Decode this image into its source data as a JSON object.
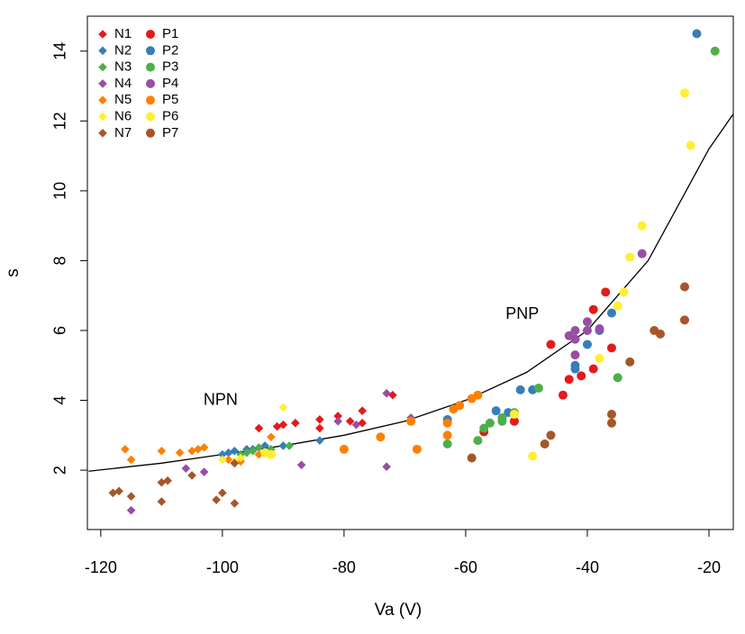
{
  "chart_data": {
    "type": "scatter",
    "xlabel": "Va (V)",
    "ylabel": "s",
    "xlim": [
      -122.2,
      -16
    ],
    "ylim": [
      0.3,
      15.0
    ],
    "xticks": [
      -120,
      -100,
      -80,
      -60,
      -40,
      -20
    ],
    "yticks": [
      2,
      4,
      6,
      8,
      10,
      12,
      14
    ],
    "legend": "upper-left",
    "annotations": [
      {
        "text": "NPN",
        "x": -100.3,
        "y": 4.0
      },
      {
        "text": "PNP",
        "x": -50.7,
        "y": 6.46
      }
    ],
    "curve": {
      "color": "#000000",
      "x": [
        -122,
        -110,
        -100,
        -90,
        -80,
        -70,
        -60,
        -50,
        -40,
        -30,
        -20,
        -16
      ],
      "values": [
        1.97,
        2.2,
        2.45,
        2.7,
        3.0,
        3.4,
        4.0,
        4.8,
        6.0,
        8.0,
        11.2,
        12.2
      ]
    },
    "series": [
      {
        "name": "N1",
        "color": "#e41a1c",
        "marker": "diamond",
        "x": [
          -94,
          -91,
          -90,
          -88,
          -84,
          -81,
          -77,
          -77,
          -72,
          -84,
          -79
        ],
        "values": [
          3.2,
          3.25,
          3.3,
          3.35,
          3.45,
          3.55,
          3.7,
          3.35,
          4.15,
          3.2,
          3.4
        ]
      },
      {
        "name": "N2",
        "color": "#377eb8",
        "marker": "diamond",
        "x": [
          -99,
          -98,
          -96,
          -95,
          -93,
          -90,
          -84,
          -100
        ],
        "values": [
          2.5,
          2.55,
          2.6,
          2.6,
          2.7,
          2.7,
          2.85,
          2.45
        ]
      },
      {
        "name": "N3",
        "color": "#4daf4a",
        "marker": "diamond",
        "x": [
          -97,
          -95,
          -94,
          -92,
          -89,
          -96
        ],
        "values": [
          2.45,
          2.55,
          2.65,
          2.6,
          2.7,
          2.5
        ]
      },
      {
        "name": "N4",
        "color": "#984ea3",
        "marker": "diamond",
        "x": [
          -115,
          -106,
          -103,
          -98,
          -87,
          -81,
          -78,
          -73,
          -73,
          -69
        ],
        "values": [
          0.85,
          2.05,
          1.95,
          2.2,
          2.15,
          3.4,
          3.3,
          4.2,
          2.1,
          3.5
        ]
      },
      {
        "name": "N5",
        "color": "#ff7f00",
        "marker": "diamond",
        "x": [
          -116,
          -115,
          -110,
          -107,
          -105,
          -104,
          -103,
          -99,
          -97,
          -94,
          -92
        ],
        "values": [
          2.6,
          2.3,
          2.55,
          2.5,
          2.55,
          2.6,
          2.65,
          2.3,
          2.25,
          2.45,
          2.95
        ]
      },
      {
        "name": "N6",
        "color": "#ffee33",
        "marker": "diamond",
        "x": [
          -100,
          -98,
          -97,
          -90
        ],
        "values": [
          2.3,
          2.25,
          2.35,
          3.8
        ]
      },
      {
        "name": "N7",
        "color": "#a65628",
        "marker": "diamond",
        "x": [
          -118,
          -117,
          -115,
          -110,
          -109,
          -110,
          -105,
          -101,
          -100,
          -98,
          -98
        ],
        "values": [
          1.35,
          1.4,
          1.25,
          1.65,
          1.7,
          1.1,
          1.85,
          1.15,
          1.35,
          1.05,
          2.2
        ]
      },
      {
        "name": "P1",
        "color": "#e41a1c",
        "marker": "circle",
        "x": [
          -57,
          -52,
          -46,
          -44,
          -43,
          -41,
          -39,
          -39,
          -37,
          -36
        ],
        "values": [
          3.1,
          3.4,
          5.6,
          4.15,
          4.6,
          4.7,
          4.9,
          6.6,
          7.1,
          5.5
        ]
      },
      {
        "name": "P2",
        "color": "#377eb8",
        "marker": "circle",
        "x": [
          -63,
          -55,
          -53,
          -51,
          -49,
          -42,
          -42,
          -40,
          -38,
          -36,
          -22
        ],
        "values": [
          3.45,
          3.7,
          3.65,
          4.3,
          4.3,
          4.9,
          5.0,
          5.6,
          6.0,
          6.5,
          14.5
        ]
      },
      {
        "name": "P3",
        "color": "#4daf4a",
        "marker": "circle",
        "x": [
          -63,
          -58,
          -57,
          -56,
          -54,
          -54,
          -52,
          -48,
          -35,
          -19
        ],
        "values": [
          2.75,
          2.85,
          3.2,
          3.35,
          3.4,
          3.5,
          3.65,
          4.35,
          4.65,
          14.0
        ]
      },
      {
        "name": "P4",
        "color": "#984ea3",
        "marker": "circle",
        "x": [
          -43,
          -42,
          -42,
          -42,
          -40,
          -40,
          -38,
          -31
        ],
        "values": [
          5.85,
          5.75,
          6.0,
          5.3,
          6.0,
          6.25,
          6.05,
          8.2
        ]
      },
      {
        "name": "P5",
        "color": "#ff7f00",
        "marker": "circle",
        "x": [
          -92,
          -80,
          -74,
          -69,
          -68,
          -63,
          -63,
          -62,
          -61,
          -59,
          -58
        ],
        "values": [
          2.45,
          2.6,
          2.95,
          3.4,
          2.6,
          3.35,
          3.0,
          3.75,
          3.85,
          4.05,
          4.15
        ]
      },
      {
        "name": "P6",
        "color": "#ffee33",
        "marker": "circle",
        "x": [
          -93,
          -92,
          -52,
          -49,
          -38,
          -35,
          -34,
          -33,
          -31,
          -24,
          -23
        ],
        "values": [
          2.5,
          2.45,
          3.6,
          2.4,
          5.2,
          6.7,
          7.1,
          8.1,
          9.0,
          12.8,
          11.3
        ]
      },
      {
        "name": "P7",
        "color": "#a65628",
        "marker": "circle",
        "x": [
          -59,
          -47,
          -46,
          -36,
          -36,
          -33,
          -29,
          -28,
          -24,
          -24
        ],
        "values": [
          2.35,
          2.75,
          3.0,
          3.35,
          3.6,
          5.1,
          6.0,
          5.9,
          7.25,
          6.3
        ]
      }
    ]
  }
}
